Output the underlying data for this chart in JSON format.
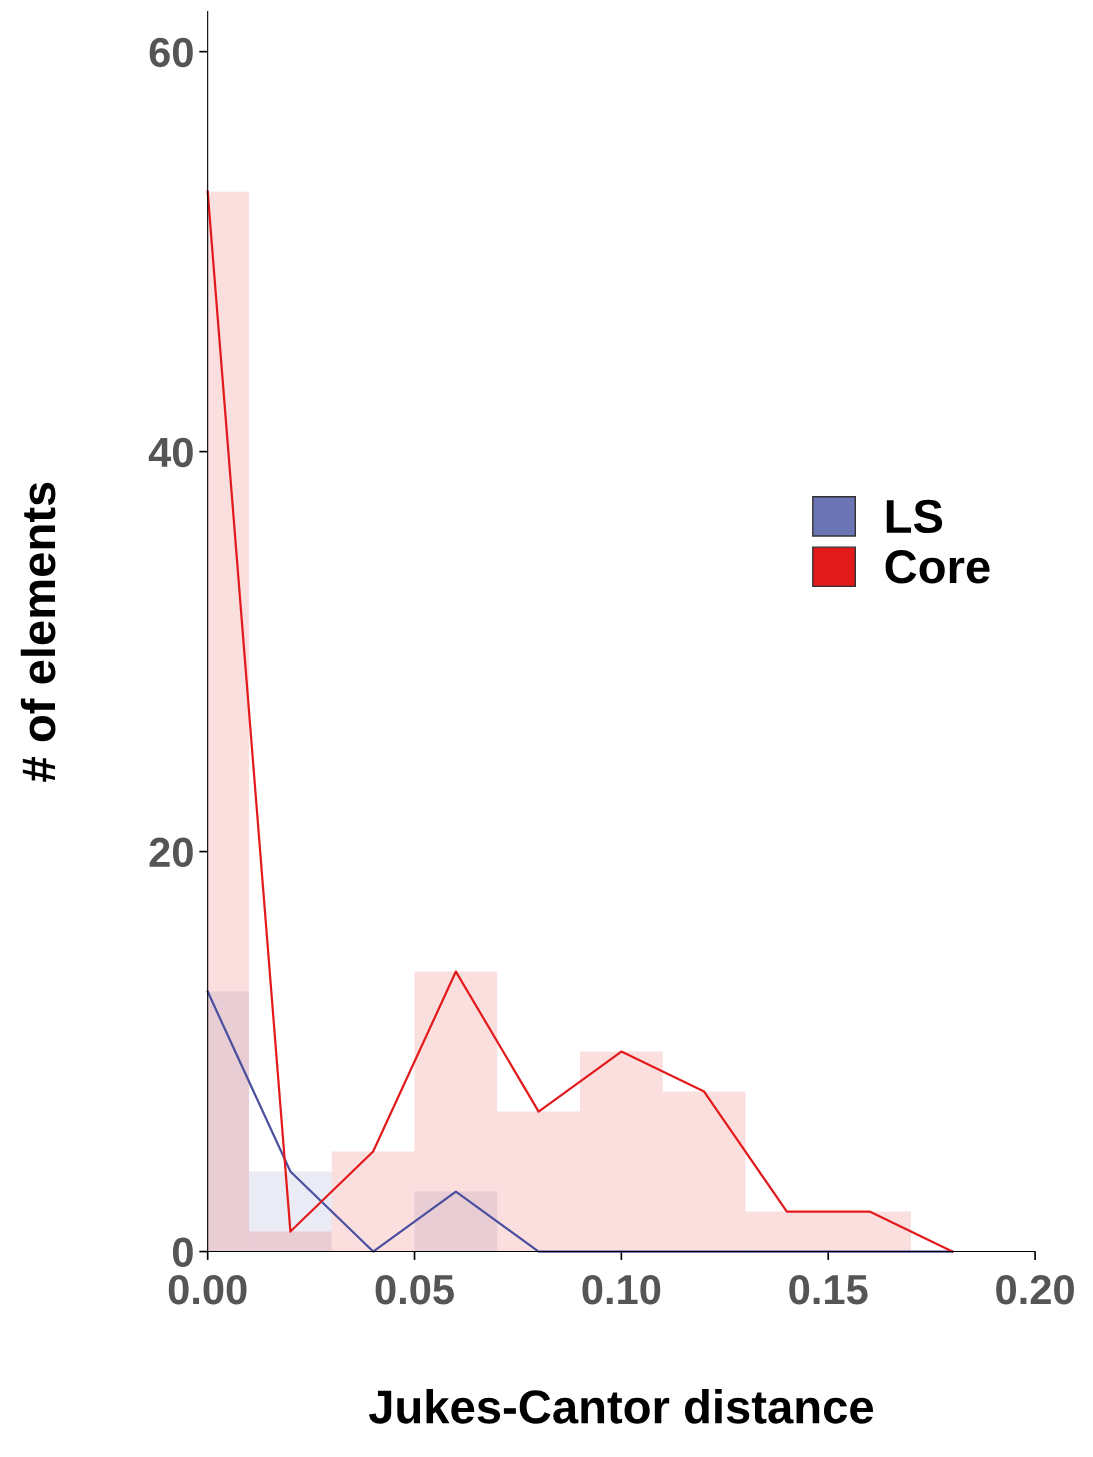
{
  "chart_data": {
    "type": "histogram",
    "xlabel": "Jukes-Cantor distance",
    "ylabel": "# of elements",
    "xlim": [
      0,
      0.2
    ],
    "ylim": [
      0,
      62
    ],
    "xticks": [
      {
        "value": 0,
        "label": "0.00"
      },
      {
        "value": 0.05,
        "label": "0.05"
      },
      {
        "value": 0.1,
        "label": "0.10"
      },
      {
        "value": 0.15,
        "label": "0.15"
      },
      {
        "value": 0.2,
        "label": "0.20"
      }
    ],
    "yticks": [
      0,
      20,
      40,
      60
    ],
    "grid": false,
    "legend": "right",
    "bins": [
      -0.01,
      0.01,
      0.03,
      0.05,
      0.07,
      0.09,
      0.11,
      0.13,
      0.15,
      0.17,
      0.19
    ],
    "series": [
      {
        "name": "LS",
        "color": "#6b74b4",
        "values": [
          13,
          4,
          0,
          3,
          0,
          0,
          0,
          0,
          0,
          0
        ]
      },
      {
        "name": "Core",
        "color": "#e31a1c",
        "values": [
          53,
          1,
          5,
          14,
          7,
          10,
          8,
          2,
          2,
          0
        ]
      },
      {
        "type": "line",
        "color": "#4a4f9e",
        "x": [
          0,
          0.02,
          0.04,
          0.06,
          0.08,
          0.1,
          0.12,
          0.14,
          0.16,
          0.18
        ],
        "values": [
          13,
          4,
          0,
          3,
          0,
          0,
          0,
          0,
          0,
          0
        ]
      },
      {
        "type": "line",
        "color": "#e31a1c",
        "x": [
          0,
          0.02,
          0.04,
          0.06,
          0.08,
          0.1,
          0.12,
          0.14,
          0.16,
          0.18
        ],
        "values": [
          53,
          1,
          5,
          14,
          7,
          10,
          8,
          2,
          2,
          0
        ]
      }
    ]
  }
}
